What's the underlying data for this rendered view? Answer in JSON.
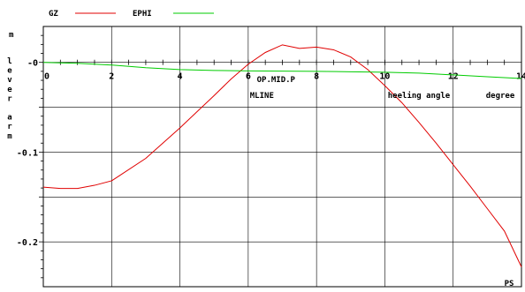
{
  "chart_data": {
    "type": "line",
    "title": "",
    "xlabel": "heeling angle",
    "xunit": "degree",
    "ylabel": "lever arm",
    "yunit": "m",
    "xlim": [
      0,
      14
    ],
    "ylim": [
      -0.25,
      0.04
    ],
    "grid": true,
    "legend_position": "top-left",
    "x_ticks": [
      0,
      2,
      4,
      6,
      8,
      10,
      12,
      14
    ],
    "x_tick_labels": [
      "0",
      "2",
      "4",
      "6",
      "8",
      "10",
      "12",
      "14"
    ],
    "y_ticks": [
      0,
      -0.1,
      -0.2
    ],
    "y_tick_labels": [
      "-0",
      "-0.1",
      "-0.2"
    ],
    "series": [
      {
        "name": "GZ",
        "color": "#e00000",
        "x": [
          0,
          0.5,
          1,
          1.5,
          2,
          3,
          4,
          5,
          5.5,
          6,
          6.5,
          7,
          7.5,
          8,
          8.5,
          9,
          9.5,
          10,
          10.5,
          11,
          11.5,
          12,
          12.5,
          13,
          13.5,
          14
        ],
        "y": [
          -0.139,
          -0.1405,
          -0.1405,
          -0.137,
          -0.132,
          -0.107,
          -0.073,
          -0.037,
          -0.0185,
          -0.002,
          0.011,
          0.0195,
          0.0155,
          0.017,
          0.014,
          0.006,
          -0.008,
          -0.026,
          -0.045,
          -0.067,
          -0.09,
          -0.114,
          -0.138,
          -0.163,
          -0.188,
          -0.228
        ]
      },
      {
        "name": "EPHI",
        "color": "#00cc00",
        "x": [
          0,
          1,
          2,
          3,
          4,
          5,
          6,
          7,
          8,
          9,
          10,
          11,
          12,
          13,
          14
        ],
        "y": [
          0,
          -0.001,
          -0.003,
          -0.006,
          -0.008,
          -0.009,
          -0.0095,
          -0.0098,
          -0.01,
          -0.0105,
          -0.011,
          -0.012,
          -0.014,
          -0.016,
          -0.018
        ]
      }
    ],
    "annotations": [
      {
        "text": "OP.MID.P",
        "x": 6.4
      },
      {
        "text": "MLINE",
        "x": 6.4
      },
      {
        "text": "PS",
        "x": 14
      }
    ]
  }
}
